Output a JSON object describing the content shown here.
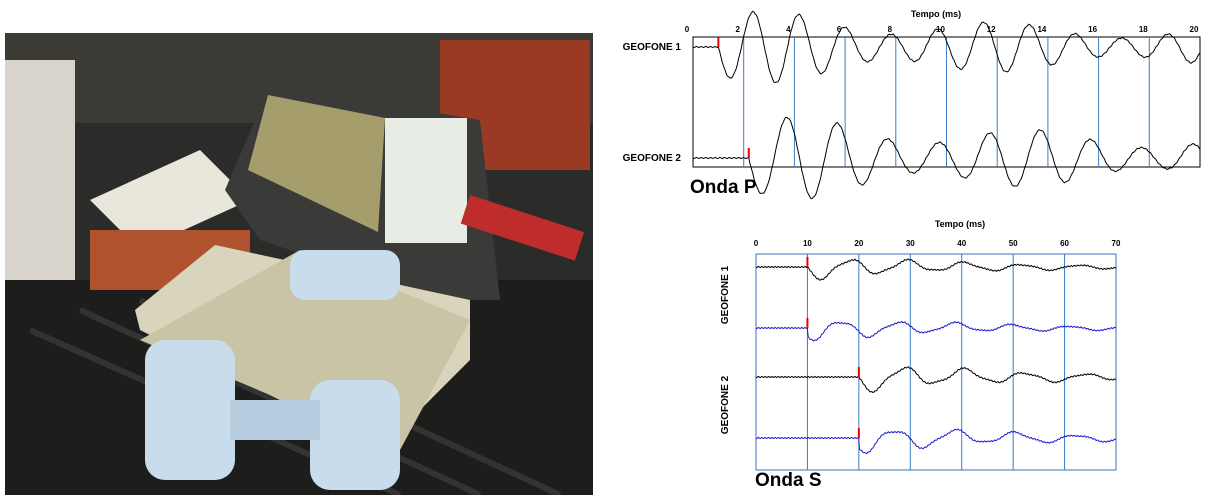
{
  "seismograms": [
    {
      "title": "Onda P",
      "axis_label": "Tempo (ms)",
      "xlim": [
        0,
        20
      ],
      "xticks": [
        0,
        2,
        4,
        6,
        8,
        10,
        12,
        14,
        16,
        18,
        20
      ],
      "traces": [
        "GEOFONE 1",
        "GEOFONE 2"
      ]
    },
    {
      "title": "Onda S",
      "axis_label": "Tempo (ms)",
      "xlim": [
        0,
        70
      ],
      "xticks": [
        0,
        10,
        20,
        30,
        40,
        50,
        60,
        70
      ],
      "traces": [
        "GEOFONE 1",
        "GEOFONE 2"
      ]
    }
  ]
}
